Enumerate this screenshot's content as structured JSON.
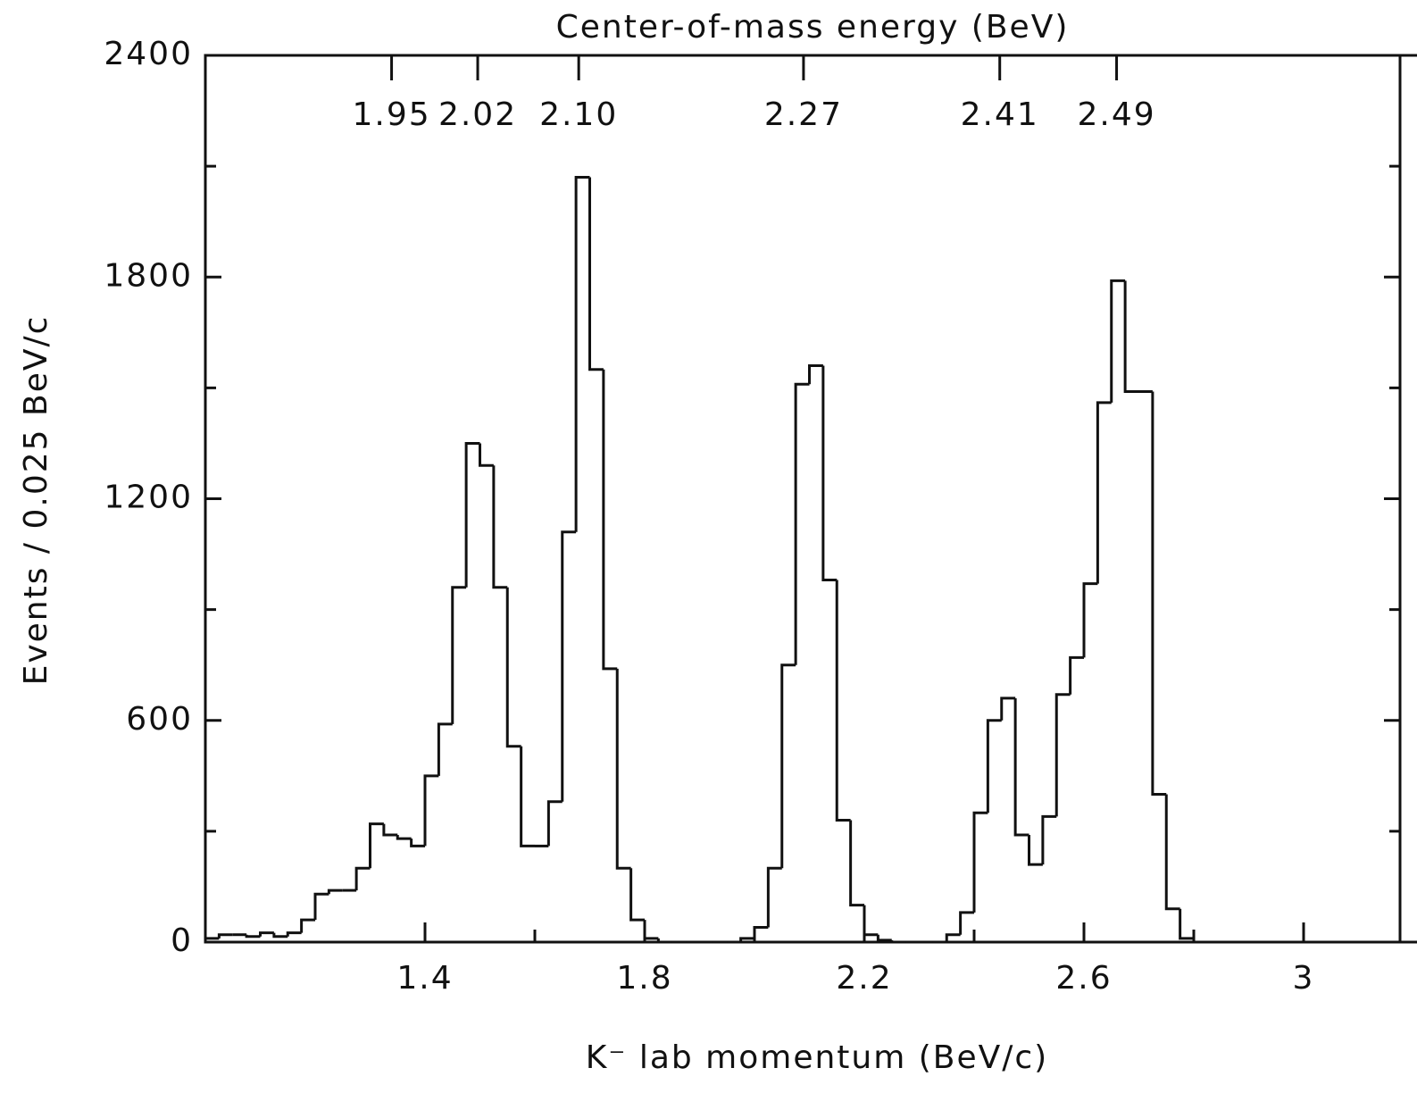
{
  "chart_data": {
    "type": "histogram",
    "title": "Center-of-mass energy (BeV)",
    "x_label": "K⁻ lab momentum (BeV/c)",
    "y_label": "Events / 0.025 BeV/c",
    "bins": [
      1.0,
      1.025,
      1.05,
      1.075,
      1.1,
      1.125,
      1.15,
      1.175,
      1.2,
      1.225,
      1.25,
      1.275,
      1.3,
      1.325,
      1.35,
      1.375,
      1.4,
      1.425,
      1.45,
      1.475,
      1.5,
      1.525,
      1.55,
      1.575,
      1.6,
      1.625,
      1.65,
      1.675,
      1.7,
      1.725,
      1.75,
      1.775,
      1.8,
      1.825,
      1.85,
      1.875,
      1.9,
      1.925,
      1.95,
      1.975,
      2.0,
      2.025,
      2.05,
      2.075,
      2.1,
      2.125,
      2.15,
      2.175,
      2.2,
      2.225,
      2.25,
      2.275,
      2.3,
      2.325,
      2.35,
      2.375,
      2.4,
      2.425,
      2.45,
      2.475,
      2.5,
      2.525,
      2.55,
      2.575,
      2.6,
      2.625,
      2.65,
      2.675,
      2.7,
      2.725,
      2.75,
      2.775,
      2.8
    ],
    "values": [
      10,
      20,
      20,
      15,
      25,
      15,
      25,
      60,
      130,
      140,
      140,
      200,
      320,
      290,
      280,
      260,
      450,
      590,
      960,
      1350,
      1290,
      960,
      530,
      260,
      260,
      380,
      1110,
      2070,
      1550,
      740,
      200,
      60,
      10,
      0,
      0,
      0,
      0,
      0,
      0,
      10,
      40,
      200,
      750,
      1510,
      1560,
      980,
      330,
      100,
      20,
      5,
      0,
      0,
      0,
      0,
      20,
      80,
      350,
      600,
      660,
      290,
      210,
      340,
      670,
      770,
      970,
      1460,
      1790,
      1490,
      1490,
      400,
      90,
      10
    ],
    "color": "#111111",
    "xlim": [
      1.0,
      3.2
    ],
    "ylim": [
      0,
      2400
    ],
    "xticks": [
      1.4,
      1.8,
      2.2,
      2.6,
      3.0
    ],
    "yticks": [
      0,
      600,
      1200,
      1800,
      2400
    ],
    "top_ticks": [
      1.95,
      2.02,
      2.1,
      2.27,
      2.41,
      2.49
    ],
    "top_tick_labels": [
      "1.95",
      "2.02",
      "2.10",
      "2.27",
      "2.41",
      "2.49"
    ]
  }
}
